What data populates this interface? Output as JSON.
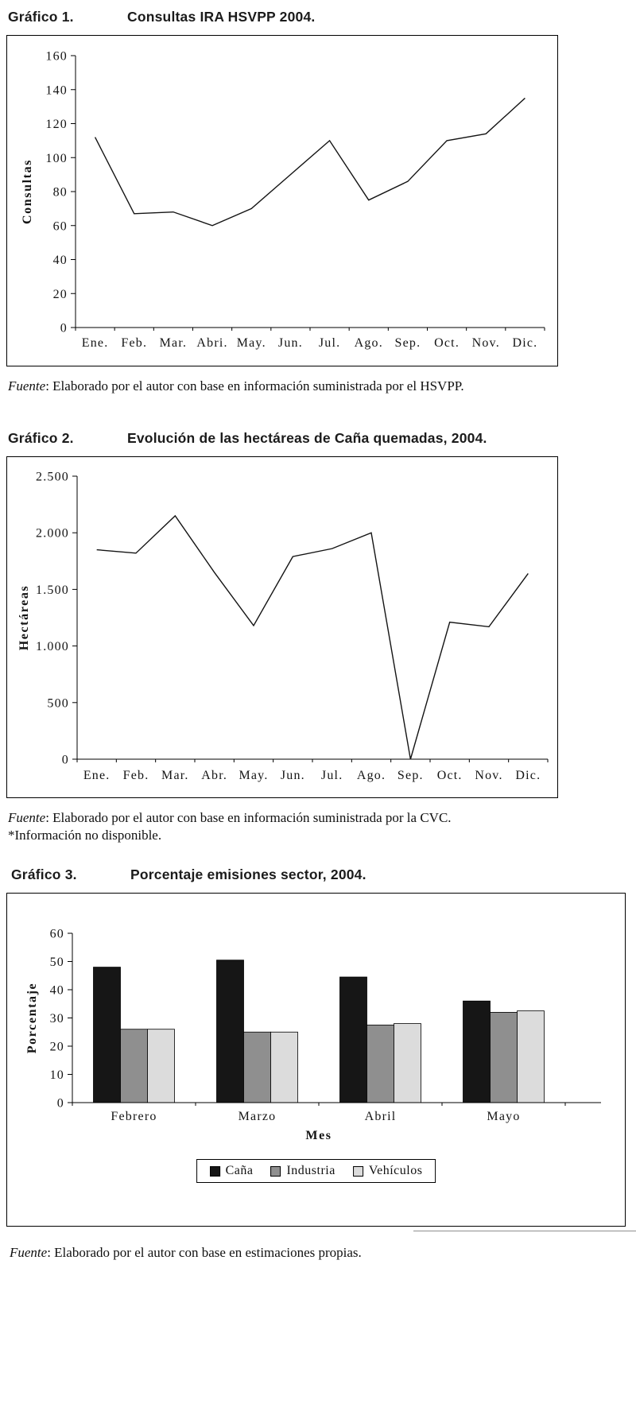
{
  "figures": [
    {
      "label": "Gráfico 1.",
      "title": "Consultas IRA HSVPP 2004.",
      "source_label": "Fuente",
      "source_text": ": Elaborado por el autor con base en información suministrada por el HSVPP."
    },
    {
      "label": "Gráfico 2.",
      "title": "Evolución de las hectáreas de Caña quemadas, 2004.",
      "source_label": "Fuente",
      "source_text": ": Elaborado por el autor con base en información suministrada por la CVC.",
      "note": "*Información no disponible."
    },
    {
      "label": "Gráfico 3.",
      "title": "Porcentaje emisiones sector, 2004.",
      "source_label": "Fuente",
      "source_text": ": Elaborado por el autor con base en estimaciones propias."
    }
  ],
  "chart_data": [
    {
      "type": "line",
      "title": "Consultas IRA HSVPP 2004.",
      "ylabel": "Consultas",
      "xlabel": "",
      "categories": [
        "Ene.",
        "Feb.",
        "Mar.",
        "Abri.",
        "May.",
        "Jun.",
        "Jul.",
        "Ago.",
        "Sep.",
        "Oct.",
        "Nov.",
        "Dic."
      ],
      "values": [
        112,
        67,
        68,
        60,
        70,
        90,
        110,
        75,
        86,
        110,
        114,
        135
      ],
      "ylim": [
        0,
        160
      ],
      "ytick_step": 20,
      "ytick_labels": [
        "0",
        "20",
        "40",
        "60",
        "80",
        "100",
        "120",
        "140",
        "160"
      ],
      "grid": false,
      "legend": false,
      "line_color": "#141414"
    },
    {
      "type": "line",
      "title": "Evolución de las hectáreas de Caña quemadas, 2004.",
      "ylabel": "Hectáreas",
      "xlabel": "",
      "categories": [
        "Ene.",
        "Feb.",
        "Mar.",
        "Abr.",
        "May.",
        "Jun.",
        "Jul.",
        "Ago.",
        "Sep.",
        "Oct.",
        "Nov.",
        "Dic."
      ],
      "values": [
        1850,
        1820,
        2150,
        1650,
        1180,
        1790,
        1860,
        2000,
        0,
        1210,
        1170,
        1640
      ],
      "ylim": [
        0,
        2500
      ],
      "ytick_step": 500,
      "ytick_labels": [
        "0",
        "500",
        "1.000",
        "1.500",
        "2.000",
        "2.500"
      ],
      "grid": false,
      "legend": false,
      "line_color": "#141414",
      "annotation": "Sep. = 0 (*Información no disponible)"
    },
    {
      "type": "bar",
      "title": "Porcentaje emisiones sector, 2004.",
      "ylabel": "Porcentaje",
      "xlabel": "Mes",
      "categories": [
        "Febrero",
        "Marzo",
        "Abril",
        "Mayo"
      ],
      "series": [
        {
          "name": "Caña",
          "color": "#161616",
          "values": [
            48,
            50.5,
            44.5,
            36
          ]
        },
        {
          "name": "Industria",
          "color": "#8f8f8f",
          "values": [
            26,
            25,
            27.5,
            32
          ]
        },
        {
          "name": "Vehículos",
          "color": "#dcdcdc",
          "values": [
            26,
            25,
            28,
            32.5
          ]
        }
      ],
      "ylim": [
        0,
        60
      ],
      "ytick_step": 10,
      "ytick_labels": [
        "0",
        "10",
        "20",
        "30",
        "40",
        "50",
        "60"
      ],
      "grid": false,
      "legend_position": "bottom"
    }
  ]
}
